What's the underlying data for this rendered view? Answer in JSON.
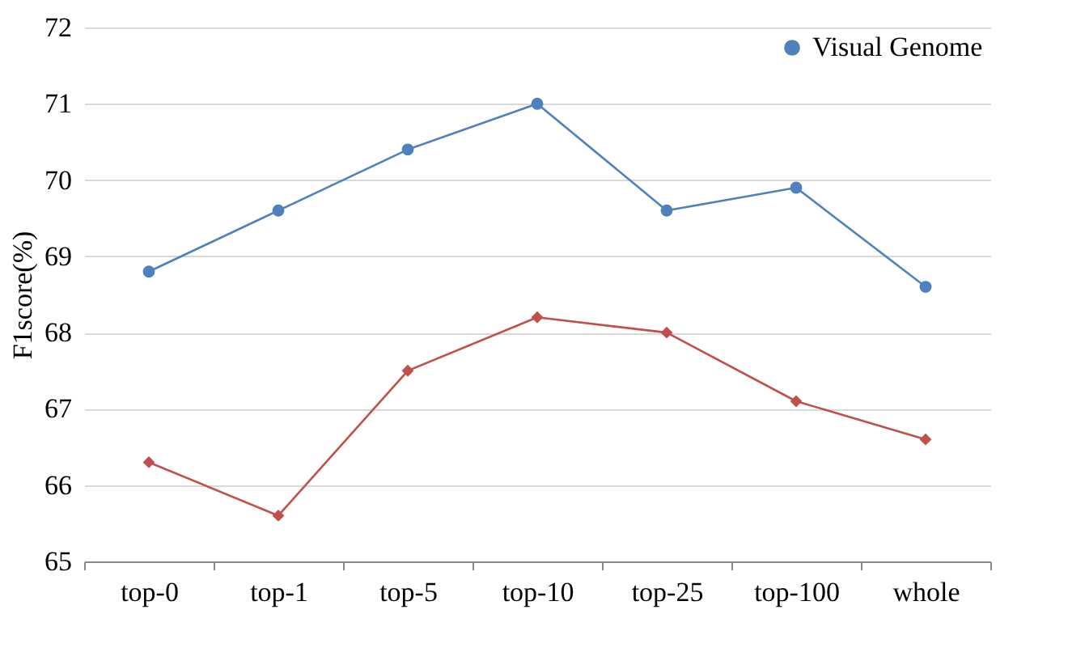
{
  "chart_data": {
    "type": "line",
    "ylabel": "F1score(%)",
    "categories": [
      "top-0",
      "top-1",
      "top-5",
      "top-10",
      "top-25",
      "top-100",
      "whole"
    ],
    "series": [
      {
        "name": "Visual Genome",
        "color": "#4f81bd",
        "marker": "circle",
        "values": [
          68.8,
          69.6,
          70.4,
          71.0,
          69.6,
          69.9,
          68.6
        ]
      },
      {
        "color": "#c0504d",
        "marker": "diamond",
        "values": [
          66.3,
          65.6,
          67.5,
          68.2,
          68.0,
          67.1,
          66.6
        ]
      }
    ],
    "ylim": [
      65,
      72
    ],
    "yticks": [
      65,
      66,
      67,
      68,
      69,
      70,
      71,
      72
    ],
    "grid": "y",
    "legend": "top right"
  }
}
